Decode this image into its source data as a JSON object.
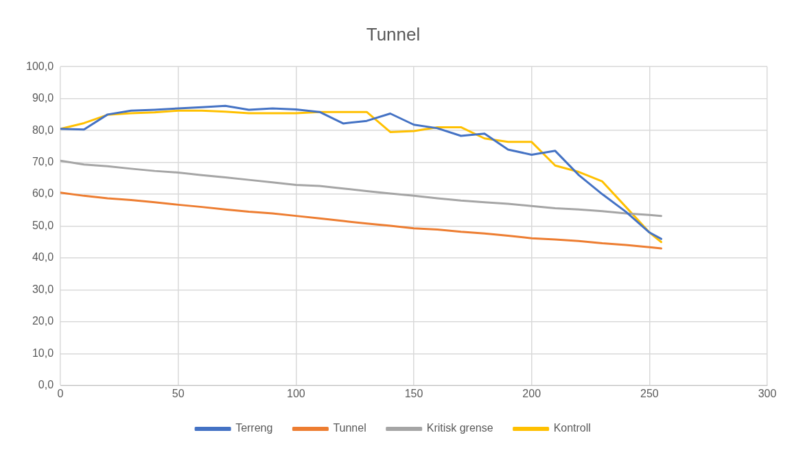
{
  "chart_data": {
    "type": "line",
    "title": "Tunnel",
    "x": [
      0,
      10,
      20,
      30,
      40,
      50,
      60,
      70,
      80,
      90,
      100,
      110,
      120,
      130,
      140,
      150,
      160,
      170,
      180,
      190,
      200,
      210,
      220,
      230,
      240,
      250,
      255
    ],
    "series": [
      {
        "name": "Terreng",
        "color": "#4472c4",
        "values": [
          80.5,
          80.3,
          85,
          86.2,
          86.5,
          86.9,
          87.3,
          87.7,
          86.5,
          86.9,
          86.6,
          85.8,
          82.2,
          83,
          85.3,
          81.8,
          80.7,
          78.3,
          79,
          74,
          72.4,
          73.6,
          66,
          60,
          54.5,
          48,
          46
        ]
      },
      {
        "name": "Tunnel",
        "color": "#ed7d31",
        "values": [
          60.5,
          59.5,
          58.7,
          58.2,
          57.5,
          56.7,
          56,
          55.2,
          54.5,
          54,
          53.2,
          52.4,
          51.6,
          50.8,
          50.1,
          49.3,
          48.9,
          48.2,
          47.7,
          47,
          46.2,
          45.8,
          45.3,
          44.6,
          44.1,
          43.4,
          43
        ]
      },
      {
        "name": "Kritisk grense",
        "color": "#a5a5a5",
        "values": [
          70.5,
          69.3,
          68.8,
          68,
          67.3,
          66.8,
          66,
          65.3,
          64.5,
          63.7,
          62.9,
          62.6,
          61.8,
          61,
          60.2,
          59.5,
          58.7,
          58,
          57.5,
          57,
          56.3,
          55.6,
          55.2,
          54.7,
          54,
          53.5,
          53.2
        ]
      },
      {
        "name": "Kontroll",
        "color": "#ffc000",
        "values": [
          80.5,
          82.3,
          84.9,
          85.4,
          85.7,
          86.2,
          86.2,
          85.9,
          85.4,
          85.4,
          85.4,
          85.8,
          85.8,
          85.8,
          79.5,
          79.8,
          81,
          81,
          77.5,
          76.4,
          76.4,
          69,
          67,
          64,
          56,
          48,
          45
        ]
      }
    ],
    "xlim": [
      0,
      300
    ],
    "xticks": [
      0,
      50,
      100,
      150,
      200,
      250,
      300
    ],
    "ylim": [
      0,
      100
    ],
    "yticks": [
      {
        "value": 0,
        "label": "0,0"
      },
      {
        "value": 10,
        "label": "10,0"
      },
      {
        "value": 20,
        "label": "20,0"
      },
      {
        "value": 30,
        "label": "30,0"
      },
      {
        "value": 40,
        "label": "40,0"
      },
      {
        "value": 50,
        "label": "50,0"
      },
      {
        "value": 60,
        "label": "60,0"
      },
      {
        "value": 70,
        "label": "70,0"
      },
      {
        "value": 80,
        "label": "80,0"
      },
      {
        "value": 90,
        "label": "90,0"
      },
      {
        "value": 100,
        "label": "100,0"
      }
    ],
    "grid": true,
    "legend": "bottom",
    "marker": "none",
    "line_style": "solid"
  }
}
